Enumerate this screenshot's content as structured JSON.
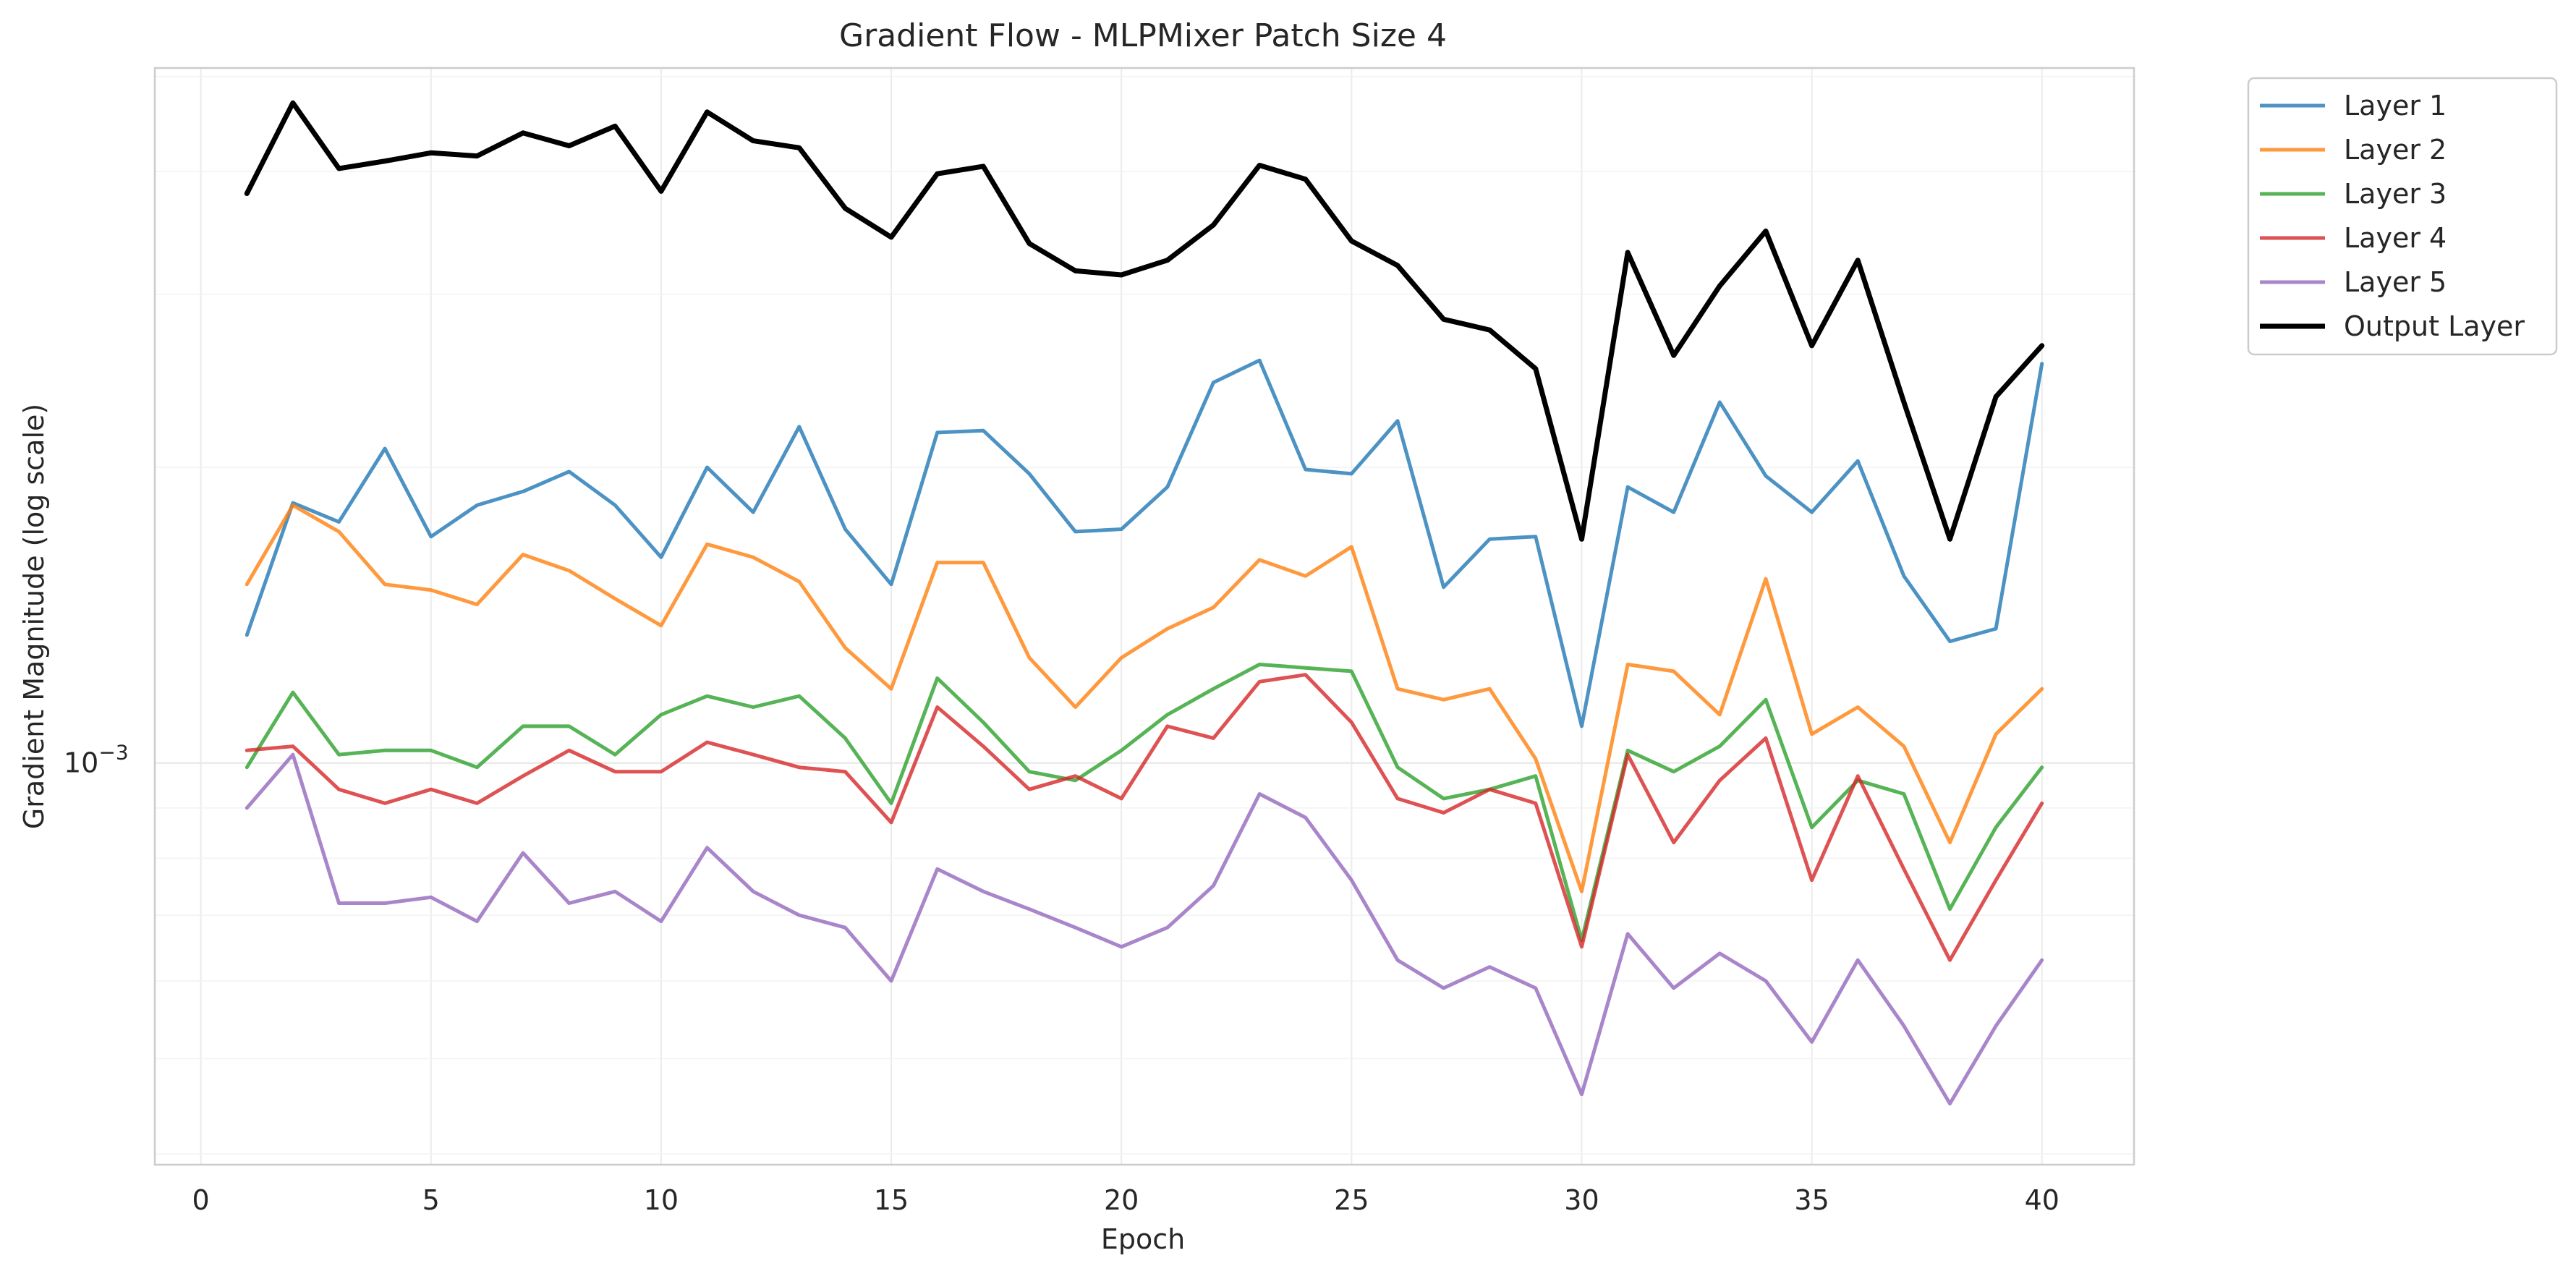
{
  "chart_data": {
    "type": "line",
    "title": "Gradient Flow - MLPMixer Patch Size 4",
    "xlabel": "Epoch",
    "ylabel": "Gradient Magnitude (log scale)",
    "y_scale": "log",
    "xlim": [
      -1,
      42
    ],
    "ylim": [
      0.00039,
      0.0051
    ],
    "x_ticks": [
      0,
      5,
      10,
      15,
      20,
      25,
      30,
      35,
      40
    ],
    "x_tick_labels": [
      "0",
      "5",
      "10",
      "15",
      "20",
      "25",
      "30",
      "35",
      "40"
    ],
    "y_tick_labels": [
      {
        "value": 0.001,
        "base": "10",
        "exp": "−3"
      }
    ],
    "grid": true,
    "legend_position": "outside-top-right",
    "x": [
      1,
      2,
      3,
      4,
      5,
      6,
      7,
      8,
      9,
      10,
      11,
      12,
      13,
      14,
      15,
      16,
      17,
      18,
      19,
      20,
      21,
      22,
      23,
      24,
      25,
      26,
      27,
      28,
      29,
      30,
      31,
      32,
      33,
      34,
      35,
      36,
      37,
      38,
      39,
      40
    ],
    "series": [
      {
        "name": "Layer 1",
        "color": "#1f77b4",
        "values": [
          0.00135,
          0.00184,
          0.00176,
          0.00209,
          0.0017,
          0.00183,
          0.00189,
          0.00198,
          0.00183,
          0.00162,
          0.002,
          0.0018,
          0.0022,
          0.00173,
          0.00152,
          0.00217,
          0.00218,
          0.00197,
          0.00172,
          0.00173,
          0.00191,
          0.00244,
          0.00257,
          0.00199,
          0.00197,
          0.00223,
          0.00151,
          0.00169,
          0.0017,
          0.00109,
          0.00191,
          0.0018,
          0.00233,
          0.00196,
          0.0018,
          0.00203,
          0.00155,
          0.00133,
          0.00137,
          0.00255
        ]
      },
      {
        "name": "Layer 2",
        "color": "#ff7f0e",
        "values": [
          0.00152,
          0.00183,
          0.00172,
          0.00152,
          0.0015,
          0.00145,
          0.00163,
          0.00157,
          0.00147,
          0.00138,
          0.00167,
          0.00162,
          0.00153,
          0.00131,
          0.00119,
          0.0016,
          0.0016,
          0.00128,
          0.00114,
          0.00128,
          0.00137,
          0.00144,
          0.00161,
          0.00155,
          0.00166,
          0.00119,
          0.00116,
          0.00119,
          0.00101,
          0.00074,
          0.00126,
          0.00124,
          0.00112,
          0.00154,
          0.00107,
          0.00114,
          0.00104,
          0.00083,
          0.00107,
          0.00119
        ]
      },
      {
        "name": "Layer 3",
        "color": "#2ca02c",
        "values": [
          0.00099,
          0.00118,
          0.00102,
          0.00103,
          0.00103,
          0.00099,
          0.00109,
          0.00109,
          0.00102,
          0.00112,
          0.00117,
          0.00114,
          0.00117,
          0.00106,
          0.00091,
          0.00122,
          0.0011,
          0.00098,
          0.00096,
          0.00103,
          0.00112,
          0.00119,
          0.00126,
          0.00125,
          0.00124,
          0.00099,
          0.00092,
          0.00094,
          0.00097,
          0.00066,
          0.00103,
          0.00098,
          0.00104,
          0.00116,
          0.00086,
          0.00096,
          0.00093,
          0.00071,
          0.00086,
          0.00099
        ]
      },
      {
        "name": "Layer 4",
        "color": "#d62728",
        "values": [
          0.00103,
          0.00104,
          0.00094,
          0.00091,
          0.00094,
          0.00091,
          0.00097,
          0.00103,
          0.00098,
          0.00098,
          0.00105,
          0.00102,
          0.00099,
          0.00098,
          0.00087,
          0.00114,
          0.00104,
          0.00094,
          0.00097,
          0.00092,
          0.00109,
          0.00106,
          0.00121,
          0.00123,
          0.0011,
          0.00092,
          0.00089,
          0.00094,
          0.00091,
          0.00065,
          0.00102,
          0.00083,
          0.00096,
          0.00106,
          0.00076,
          0.00097,
          0.00078,
          0.00063,
          0.00076,
          0.00091
        ]
      },
      {
        "name": "Layer 5",
        "color": "#9467bd",
        "values": [
          0.0009,
          0.00102,
          0.00072,
          0.00072,
          0.00073,
          0.00069,
          0.00081,
          0.00072,
          0.00074,
          0.00069,
          0.00082,
          0.00074,
          0.0007,
          0.00068,
          0.0006,
          0.00078,
          0.00074,
          0.00071,
          0.00068,
          0.00065,
          0.00068,
          0.00075,
          0.00093,
          0.00088,
          0.00076,
          0.00063,
          0.00059,
          0.00062,
          0.00059,
          0.00046,
          0.00067,
          0.00059,
          0.00064,
          0.0006,
          0.00052,
          0.00063,
          0.00054,
          0.00045,
          0.00054,
          0.00063
        ]
      },
      {
        "name": "Output Layer",
        "color": "#000000",
        "values": [
          0.0038,
          0.0047,
          0.00403,
          0.0041,
          0.00418,
          0.00415,
          0.00438,
          0.00425,
          0.00445,
          0.00382,
          0.0046,
          0.0043,
          0.00423,
          0.00367,
          0.00343,
          0.00398,
          0.00405,
          0.00338,
          0.00317,
          0.00314,
          0.00325,
          0.00353,
          0.00406,
          0.00393,
          0.0034,
          0.00321,
          0.00283,
          0.00276,
          0.00252,
          0.00169,
          0.00331,
          0.0026,
          0.00306,
          0.00348,
          0.00266,
          0.00325,
          0.00233,
          0.00169,
          0.00236,
          0.00266
        ]
      }
    ]
  }
}
